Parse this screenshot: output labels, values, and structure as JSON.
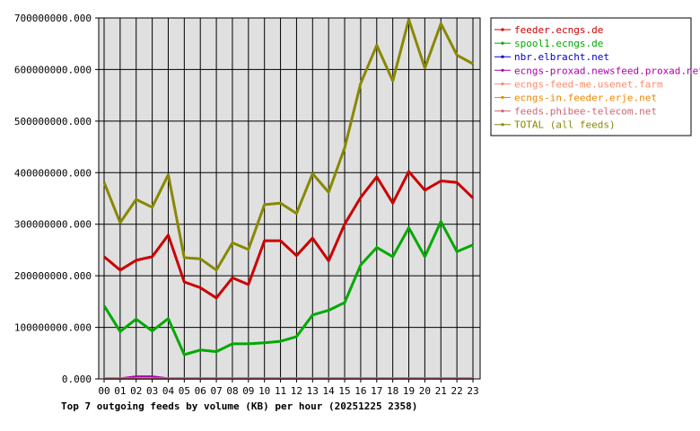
{
  "chart_data": {
    "type": "line",
    "title": "Top 7 outgoing feeds by volume (KB) per hour (20251225 2358)",
    "x": [
      "00",
      "01",
      "02",
      "03",
      "04",
      "05",
      "06",
      "07",
      "08",
      "09",
      "10",
      "11",
      "12",
      "13",
      "14",
      "15",
      "16",
      "17",
      "18",
      "19",
      "20",
      "21",
      "22",
      "23"
    ],
    "yticks": [
      "0.000",
      "100000000.000",
      "200000000.000",
      "300000000.000",
      "400000000.000",
      "500000000.000",
      "600000000.000",
      "700000000.000"
    ],
    "ylim": [
      0,
      700000000
    ],
    "grid": true,
    "legend_position": "top-right",
    "series": [
      {
        "name": "feeder.ecngs.de",
        "color": "#cc0000",
        "values": [
          237000000,
          211000000,
          230000000,
          237000000,
          279000000,
          188000000,
          177000000,
          157000000,
          196000000,
          183000000,
          268000000,
          268000000,
          239000000,
          273000000,
          229000000,
          300000000,
          352000000,
          392000000,
          341000000,
          402000000,
          366000000,
          384000000,
          381000000,
          351000000
        ]
      },
      {
        "name": "spool1.ecngs.de",
        "color": "#00aa00",
        "values": [
          142000000,
          92000000,
          116000000,
          93000000,
          117000000,
          47000000,
          56000000,
          53000000,
          68000000,
          68000000,
          70000000,
          73000000,
          82000000,
          124000000,
          133000000,
          148000000,
          221000000,
          255000000,
          237000000,
          293000000,
          237000000,
          305000000,
          247000000,
          260000000
        ]
      },
      {
        "name": "nbr.elbracht.net",
        "color": "#0000cc",
        "values": [
          500000,
          500000,
          500000,
          500000,
          500000,
          500000,
          500000,
          500000,
          500000,
          500000,
          500000,
          500000,
          500000,
          500000,
          500000,
          500000,
          500000,
          500000,
          500000,
          500000,
          500000,
          500000,
          500000,
          500000
        ]
      },
      {
        "name": "ecngs-proxad.newsfeed.proxad.net",
        "color": "#aa00aa",
        "values": [
          1000000,
          1000000,
          5000000,
          5000000,
          1000000,
          1000000,
          1000000,
          1000000,
          1000000,
          1000000,
          1000000,
          1000000,
          1000000,
          1000000,
          1000000,
          1000000,
          1000000,
          1000000,
          1000000,
          1000000,
          1000000,
          1000000,
          1000000,
          1000000
        ]
      },
      {
        "name": "ecngs-feed-me.usenet.farm",
        "color": "#ff8866",
        "values": [
          1000000,
          1000000,
          1000000,
          1000000,
          1000000,
          1000000,
          1000000,
          1000000,
          1000000,
          1000000,
          1000000,
          1000000,
          1000000,
          1000000,
          1000000,
          1000000,
          1000000,
          1000000,
          1000000,
          1000000,
          1000000,
          1000000,
          1000000,
          1000000
        ]
      },
      {
        "name": "ecngs-in.feeder.erje.net",
        "color": "#ee8800",
        "values": [
          1000000,
          1000000,
          1000000,
          1000000,
          1000000,
          1000000,
          1000000,
          1000000,
          1000000,
          1000000,
          1000000,
          1000000,
          1000000,
          1000000,
          1000000,
          1000000,
          1000000,
          1000000,
          1000000,
          1000000,
          1000000,
          1000000,
          1000000,
          1000000
        ]
      },
      {
        "name": "feeds.phibee-telecom.net",
        "color": "#cc6677",
        "values": [
          1000000,
          1000000,
          1000000,
          1000000,
          1000000,
          1000000,
          1000000,
          1000000,
          1000000,
          1000000,
          1000000,
          1000000,
          1000000,
          1000000,
          1000000,
          1000000,
          1000000,
          1000000,
          1000000,
          1000000,
          1000000,
          1000000,
          1000000,
          1000000
        ]
      },
      {
        "name": "TOTAL (all feeds)",
        "color": "#888800",
        "values": [
          381000000,
          303000000,
          348000000,
          333000000,
          396000000,
          235000000,
          233000000,
          211000000,
          264000000,
          251000000,
          338000000,
          341000000,
          321000000,
          398000000,
          362000000,
          448000000,
          573000000,
          647000000,
          578000000,
          697000000,
          603000000,
          689000000,
          628000000,
          611000000
        ]
      }
    ]
  }
}
